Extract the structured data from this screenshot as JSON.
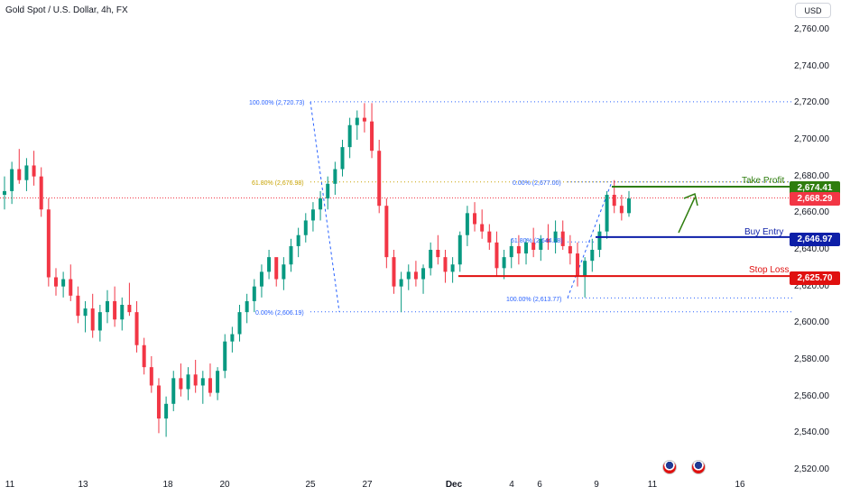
{
  "header": {
    "symbol": "Gold Spot / U.S. Dollar, 4h, FX",
    "currency_button": "USD"
  },
  "y_axis": {
    "ticks": [
      "2,760.00",
      "2,740.00",
      "2,720.00",
      "2,700.00",
      "2,680.00",
      "2,660.00",
      "2,640.00",
      "2,620.00",
      "2,600.00",
      "2,580.00",
      "2,560.00",
      "2,540.00",
      "2,520.00"
    ]
  },
  "x_axis": {
    "ticks": [
      "11",
      "13",
      "18",
      "20",
      "25",
      "27",
      "Dec",
      "4",
      "6",
      "9",
      "11",
      "16"
    ]
  },
  "levels": {
    "take_profit": {
      "label": "Take Profit",
      "price": "2,674.41",
      "color": "#2e7d0e"
    },
    "current": {
      "price": "2,668.29",
      "color": "#f23645"
    },
    "buy_entry": {
      "label": "Buy Entry",
      "price": "2,646.97",
      "color": "#0d1fa8"
    },
    "stop_loss": {
      "label": "Stop Loss",
      "price": "2,625.70",
      "color": "#e0100f"
    }
  },
  "fib_big": {
    "top": "100.00% (2,720.73)",
    "mid": "61.80% (2,676.98)",
    "bottom": "0.00% (2,606.19)"
  },
  "fib_small": {
    "top": "0.00% (2,677.00)",
    "mid": "61.80% (2,644.28)",
    "bottom": "100.00% (2,613.77)"
  },
  "colors": {
    "up": "#089981",
    "down": "#f23645",
    "fib": "#2962ff",
    "fib_gold": "#c7a200"
  },
  "chart_data": {
    "type": "candlestick",
    "title": "Gold Spot / U.S. Dollar, 4h, FX",
    "ylim": [
      2520,
      2770
    ],
    "candles_ohlc": [
      [
        2670,
        2680,
        2662,
        2672
      ],
      [
        2672,
        2688,
        2665,
        2684
      ],
      [
        2684,
        2695,
        2676,
        2678
      ],
      [
        2678,
        2690,
        2672,
        2686
      ],
      [
        2686,
        2694,
        2675,
        2680
      ],
      [
        2680,
        2685,
        2658,
        2662
      ],
      [
        2662,
        2668,
        2620,
        2625
      ],
      [
        2625,
        2630,
        2615,
        2620
      ],
      [
        2620,
        2628,
        2614,
        2624
      ],
      [
        2624,
        2632,
        2612,
        2615
      ],
      [
        2615,
        2620,
        2600,
        2604
      ],
      [
        2604,
        2612,
        2595,
        2608
      ],
      [
        2608,
        2616,
        2592,
        2596
      ],
      [
        2596,
        2610,
        2590,
        2606
      ],
      [
        2606,
        2618,
        2600,
        2612
      ],
      [
        2612,
        2620,
        2598,
        2602
      ],
      [
        2602,
        2614,
        2596,
        2610
      ],
      [
        2610,
        2622,
        2604,
        2606
      ],
      [
        2606,
        2612,
        2584,
        2588
      ],
      [
        2588,
        2592,
        2572,
        2576
      ],
      [
        2576,
        2582,
        2562,
        2566
      ],
      [
        2566,
        2570,
        2540,
        2548
      ],
      [
        2548,
        2560,
        2538,
        2556
      ],
      [
        2556,
        2574,
        2552,
        2570
      ],
      [
        2570,
        2578,
        2560,
        2564
      ],
      [
        2564,
        2576,
        2558,
        2572
      ],
      [
        2572,
        2580,
        2562,
        2566
      ],
      [
        2566,
        2574,
        2556,
        2570
      ],
      [
        2570,
        2578,
        2560,
        2562
      ],
      [
        2562,
        2576,
        2558,
        2574
      ],
      [
        2574,
        2594,
        2570,
        2590
      ],
      [
        2590,
        2598,
        2584,
        2594
      ],
      [
        2594,
        2610,
        2590,
        2606
      ],
      [
        2606,
        2616,
        2600,
        2612
      ],
      [
        2612,
        2624,
        2606,
        2620
      ],
      [
        2620,
        2632,
        2614,
        2628
      ],
      [
        2628,
        2640,
        2624,
        2636
      ],
      [
        2636,
        2634,
        2620,
        2624
      ],
      [
        2624,
        2636,
        2618,
        2632
      ],
      [
        2632,
        2646,
        2628,
        2642
      ],
      [
        2642,
        2652,
        2636,
        2648
      ],
      [
        2648,
        2660,
        2644,
        2656
      ],
      [
        2656,
        2666,
        2650,
        2662
      ],
      [
        2662,
        2672,
        2656,
        2668
      ],
      [
        2668,
        2680,
        2662,
        2676
      ],
      [
        2676,
        2688,
        2670,
        2684
      ],
      [
        2684,
        2700,
        2680,
        2696
      ],
      [
        2696,
        2712,
        2690,
        2708
      ],
      [
        2708,
        2716,
        2700,
        2712
      ],
      [
        2712,
        2720,
        2704,
        2710
      ],
      [
        2710,
        2720,
        2690,
        2694
      ],
      [
        2694,
        2700,
        2660,
        2664
      ],
      [
        2664,
        2668,
        2630,
        2636
      ],
      [
        2636,
        2640,
        2616,
        2620
      ],
      [
        2620,
        2628,
        2606,
        2624
      ],
      [
        2624,
        2632,
        2618,
        2628
      ],
      [
        2628,
        2634,
        2620,
        2624
      ],
      [
        2624,
        2632,
        2616,
        2630
      ],
      [
        2630,
        2644,
        2626,
        2640
      ],
      [
        2640,
        2648,
        2632,
        2636
      ],
      [
        2636,
        2640,
        2622,
        2628
      ],
      [
        2628,
        2636,
        2622,
        2632
      ],
      [
        2632,
        2650,
        2628,
        2648
      ],
      [
        2648,
        2664,
        2642,
        2660
      ],
      [
        2660,
        2666,
        2650,
        2654
      ],
      [
        2654,
        2662,
        2646,
        2650
      ],
      [
        2650,
        2654,
        2640,
        2644
      ],
      [
        2644,
        2650,
        2626,
        2630
      ],
      [
        2630,
        2640,
        2624,
        2636
      ],
      [
        2636,
        2646,
        2630,
        2642
      ],
      [
        2642,
        2648,
        2632,
        2638
      ],
      [
        2638,
        2646,
        2632,
        2644
      ],
      [
        2644,
        2652,
        2636,
        2640
      ],
      [
        2640,
        2648,
        2634,
        2646
      ],
      [
        2646,
        2654,
        2640,
        2644
      ],
      [
        2644,
        2656,
        2638,
        2650
      ],
      [
        2650,
        2656,
        2640,
        2642
      ],
      [
        2642,
        2648,
        2632,
        2638
      ],
      [
        2638,
        2644,
        2620,
        2626
      ],
      [
        2626,
        2636,
        2614,
        2634
      ],
      [
        2634,
        2646,
        2628,
        2640
      ],
      [
        2640,
        2654,
        2636,
        2650
      ],
      [
        2650,
        2672,
        2646,
        2670
      ],
      [
        2670,
        2678,
        2660,
        2664
      ],
      [
        2664,
        2670,
        2656,
        2660
      ],
      [
        2660,
        2672,
        2658,
        2668
      ]
    ]
  }
}
